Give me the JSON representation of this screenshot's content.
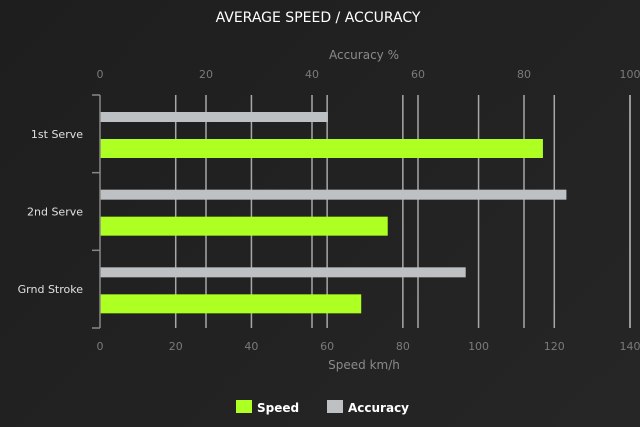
{
  "chart_data": {
    "type": "bar",
    "orientation": "horizontal",
    "title": "AVERAGE SPEED / ACCURACY",
    "categories": [
      "1st Serve",
      "2nd Serve",
      "Grnd Stroke"
    ],
    "series": [
      {
        "name": "Accuracy",
        "axis": "top",
        "color": "#bdc1c3",
        "values": [
          43,
          88,
          69
        ]
      },
      {
        "name": "Speed",
        "axis": "bottom",
        "color": "#aeff22",
        "values": [
          117,
          76,
          69
        ]
      }
    ],
    "x_bottom": {
      "label": "Speed km/h",
      "range": [
        0,
        140
      ],
      "ticks": [
        0,
        20,
        40,
        60,
        80,
        100,
        120,
        140
      ]
    },
    "x_top": {
      "label": "Accuracy %",
      "range": [
        0,
        100
      ],
      "ticks": [
        0,
        20,
        40,
        60,
        80,
        100
      ]
    },
    "grid": true,
    "legend_position": "bottom",
    "legend": [
      "Speed",
      "Accuracy"
    ],
    "background": "#222222"
  }
}
